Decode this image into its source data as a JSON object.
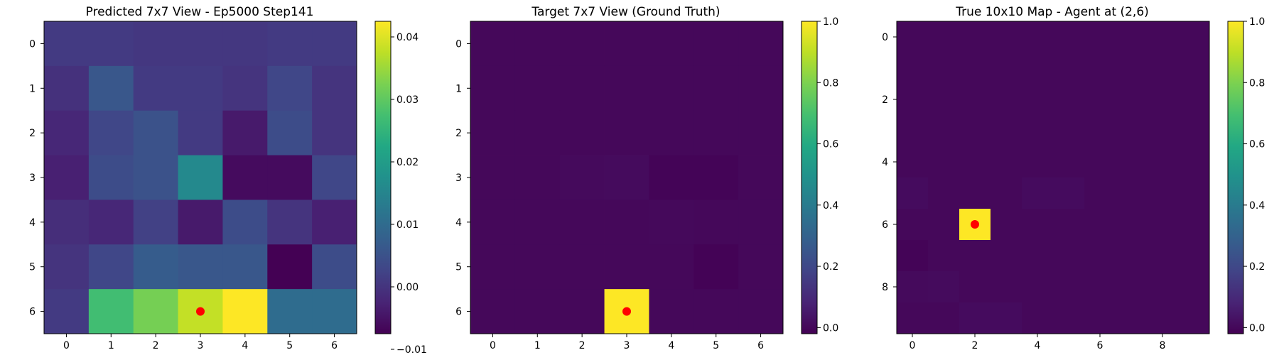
{
  "chart_data": [
    {
      "type": "heatmap",
      "title": "Predicted 7x7 View - Ep5000 Step141",
      "rows": 7,
      "cols": 7,
      "x_ticks": [
        "0",
        "1",
        "2",
        "3",
        "4",
        "5",
        "6"
      ],
      "y_ticks": [
        "0",
        "1",
        "2",
        "3",
        "4",
        "5",
        "6"
      ],
      "colorbar": {
        "min": -0.0075,
        "max": 0.0425,
        "ticks": [
          -0.01,
          0.0,
          0.01,
          0.02,
          0.03,
          0.04
        ],
        "tick_labels": [
          "−0.01",
          "0.00",
          "0.01",
          "0.02",
          "0.03",
          "0.04"
        ]
      },
      "values": [
        [
          0.001,
          0.001,
          0.0005,
          0.0005,
          0.0005,
          0.001,
          0.001
        ],
        [
          -0.0005,
          0.006,
          0.001,
          0.001,
          0.0,
          0.003,
          0.0
        ],
        [
          -0.002,
          0.003,
          0.005,
          0.001,
          -0.004,
          0.004,
          0.0
        ],
        [
          -0.003,
          0.004,
          0.005,
          0.016,
          -0.006,
          -0.006,
          0.003
        ],
        [
          -0.001,
          -0.002,
          0.002,
          -0.004,
          0.004,
          0.0,
          -0.003
        ],
        [
          0.0,
          0.003,
          0.007,
          0.006,
          0.006,
          -0.0075,
          0.004
        ],
        [
          0.001,
          0.027,
          0.032,
          0.038,
          0.0425,
          0.01,
          0.01
        ]
      ],
      "marker": {
        "row": 6,
        "col": 3,
        "color": "#ff0000"
      }
    },
    {
      "type": "heatmap",
      "title": "Target 7x7 View (Ground Truth)",
      "rows": 7,
      "cols": 7,
      "x_ticks": [
        "0",
        "1",
        "2",
        "3",
        "4",
        "5",
        "6"
      ],
      "y_ticks": [
        "0",
        "1",
        "2",
        "3",
        "4",
        "5",
        "6"
      ],
      "colorbar": {
        "min": -0.02,
        "max": 1.0,
        "ticks": [
          0.0,
          0.2,
          0.4,
          0.6,
          0.8,
          1.0
        ],
        "tick_labels": [
          "0.0",
          "0.2",
          "0.4",
          "0.6",
          "0.8",
          "1.0"
        ]
      },
      "values": [
        [
          0,
          0,
          0,
          0,
          0,
          0,
          0
        ],
        [
          0,
          0,
          0,
          0,
          0,
          0,
          0
        ],
        [
          0,
          0,
          0,
          0,
          0,
          0,
          0
        ],
        [
          0,
          0,
          0.005,
          0.008,
          -0.01,
          -0.01,
          0
        ],
        [
          0,
          0,
          0,
          0,
          0.002,
          0,
          0
        ],
        [
          0,
          0,
          0,
          0,
          0,
          -0.015,
          0
        ],
        [
          0,
          0,
          0,
          1.0,
          0,
          0,
          0
        ]
      ],
      "marker": {
        "row": 6,
        "col": 3,
        "color": "#ff0000"
      }
    },
    {
      "type": "heatmap",
      "title": "True 10x10 Map - Agent at (2,6)",
      "rows": 10,
      "cols": 10,
      "x_ticks": [
        "0",
        "2",
        "4",
        "6",
        "8"
      ],
      "y_ticks": [
        "0",
        "2",
        "4",
        "6",
        "8"
      ],
      "colorbar": {
        "min": -0.02,
        "max": 1.0,
        "ticks": [
          0.0,
          0.2,
          0.4,
          0.6,
          0.8,
          1.0
        ],
        "tick_labels": [
          "0.0",
          "0.2",
          "0.4",
          "0.6",
          "0.8",
          "1.0"
        ]
      },
      "values": [
        [
          0,
          0,
          0,
          0,
          0,
          0,
          0,
          0,
          0,
          0
        ],
        [
          0,
          0,
          0,
          0,
          0,
          0,
          0,
          0,
          0,
          0
        ],
        [
          0,
          0,
          0,
          0,
          0,
          0,
          0,
          0,
          0,
          0
        ],
        [
          0,
          0,
          0,
          0,
          0,
          0,
          0,
          0,
          0,
          0
        ],
        [
          0,
          0,
          0,
          0,
          0,
          0,
          0,
          0,
          0,
          0
        ],
        [
          0.01,
          0,
          0,
          0,
          0.01,
          0.01,
          0,
          0,
          0,
          0
        ],
        [
          0,
          0,
          1.0,
          0,
          0,
          0,
          0,
          0,
          0,
          0
        ],
        [
          -0.01,
          0,
          0,
          0,
          0,
          0,
          0,
          0,
          0,
          0
        ],
        [
          0.005,
          0.008,
          0,
          0,
          0,
          0,
          0,
          0,
          0,
          0
        ],
        [
          0,
          0,
          0.01,
          0.01,
          0,
          0,
          0,
          0,
          0,
          0
        ]
      ],
      "marker": {
        "row": 6,
        "col": 2,
        "color": "#ff0000"
      }
    }
  ]
}
